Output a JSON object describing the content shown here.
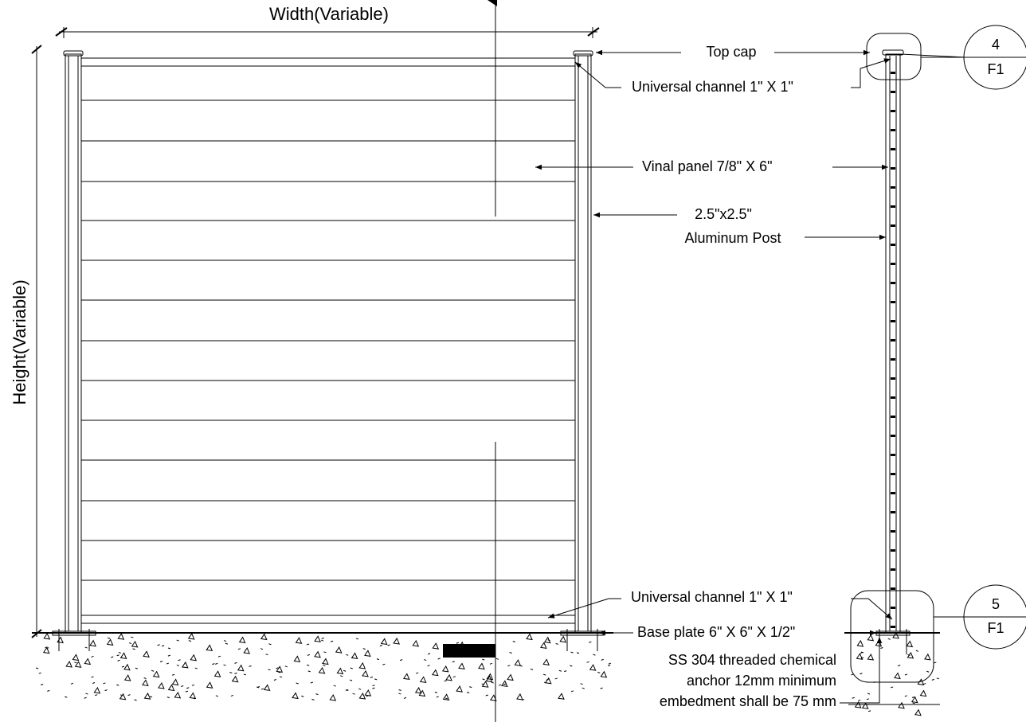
{
  "dimensions": {
    "width": "Width(Variable)",
    "height": "Height(Variable)"
  },
  "labels": {
    "top_cap": "Top cap",
    "channel_top": "Universal channel 1\" X 1\"",
    "panel": "Vinal panel  7/8\" X 6\"",
    "post_size": "2.5\"x2.5\"",
    "post": "Aluminum Post",
    "channel_bottom": "Universal channel 1\" X 1\"",
    "base_plate": "Base plate 6\" X 6\" X 1/2\"",
    "anchor": [
      "SS 304 threaded chemical",
      "anchor 12mm minimum",
      "embedment shall be 75 mm"
    ]
  },
  "callouts": [
    {
      "number": "4",
      "sheet": "F1"
    },
    {
      "number": "5",
      "sheet": "F1"
    }
  ]
}
